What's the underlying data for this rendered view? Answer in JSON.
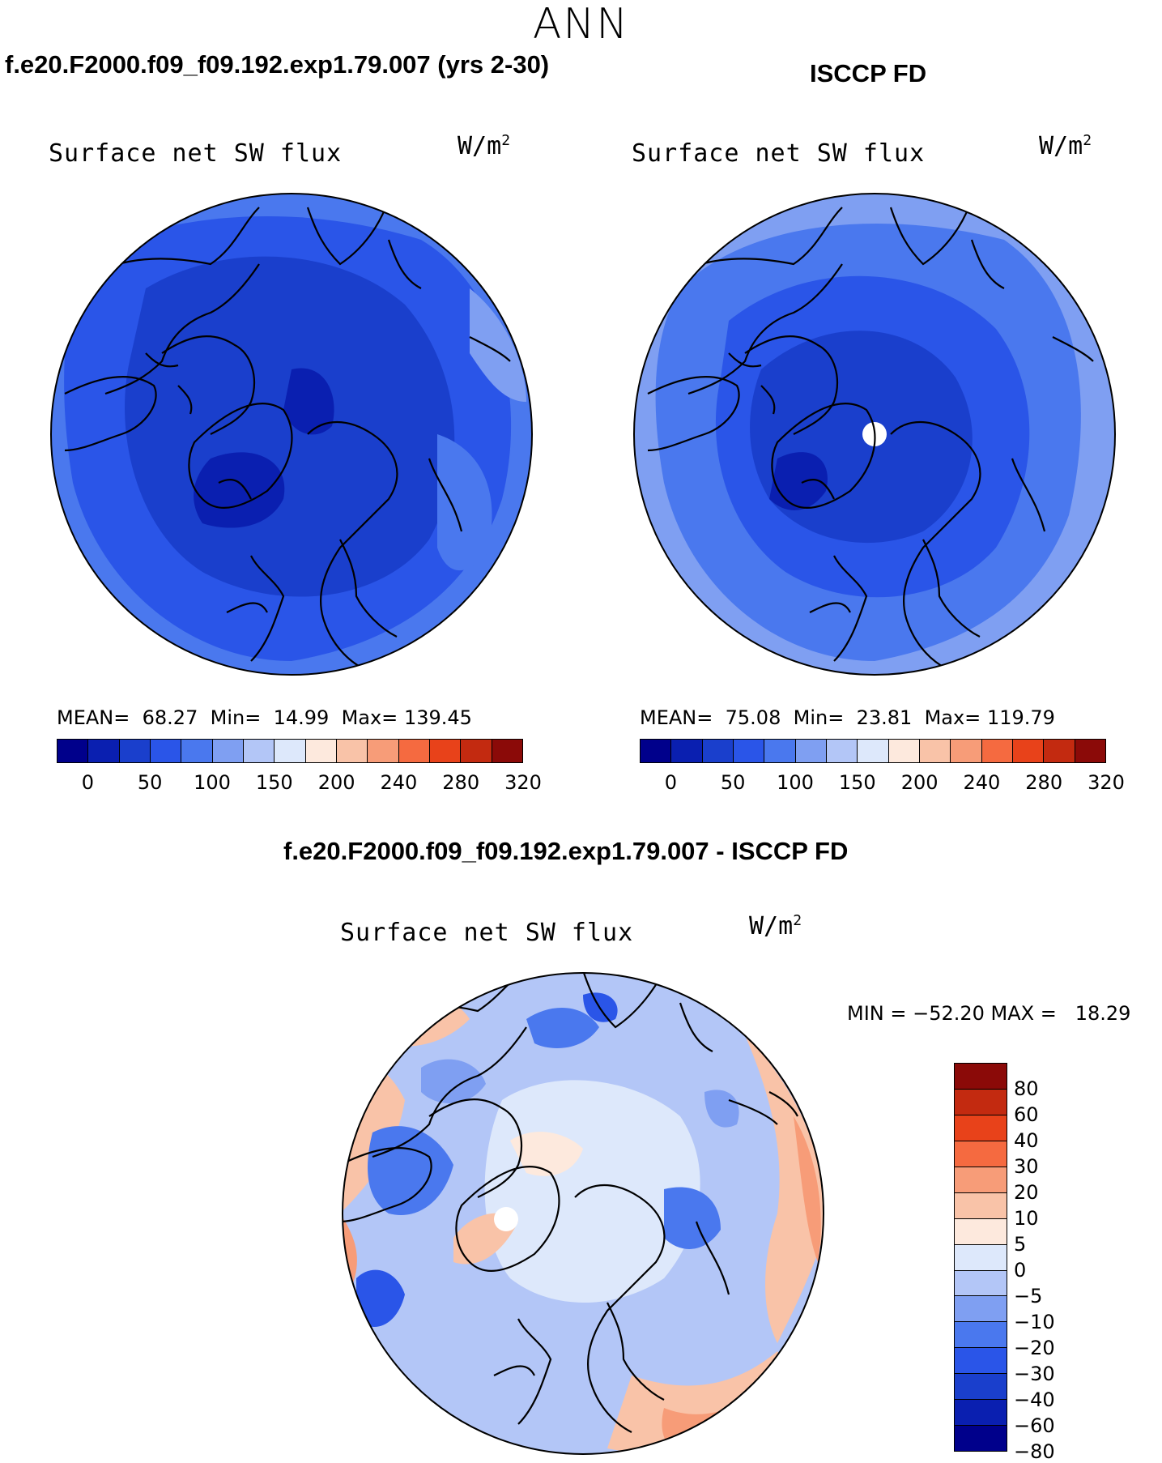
{
  "season": "ANN",
  "panels": {
    "model": {
      "case_title": "f.e20.F2000.f09_f09.192.exp1.79.007 (yrs 2-30)",
      "label": "Surface net SW flux",
      "unit_base": "W/m",
      "unit_exp": "2",
      "stats": {
        "mean_label": "MEAN=",
        "mean": "68.27",
        "min_label": "Min=",
        "min": "14.99",
        "max_label": "Max=",
        "max": "139.45"
      }
    },
    "obs": {
      "case_title": "ISCCP FD",
      "label": "Surface net SW flux",
      "unit_base": "W/m",
      "unit_exp": "2",
      "stats": {
        "mean_label": "MEAN=",
        "mean": "75.08",
        "min_label": "Min=",
        "min": "23.81",
        "max_label": "Max=",
        "max": "119.79"
      }
    },
    "diff": {
      "case_title": "f.e20.F2000.f09_f09.192.exp1.79.007 - ISCCP FD",
      "label": "Surface net SW flux",
      "unit_base": "W/m",
      "unit_exp": "2",
      "minmax": "MIN = −52.20 MAX =   18.29"
    }
  },
  "colorbar_main": {
    "colors": [
      "#00008b",
      "#0a1fb0",
      "#1a3fcc",
      "#2a55e8",
      "#4a78ee",
      "#7f9ff2",
      "#b3c6f7",
      "#dde8fb",
      "#fde9dd",
      "#f9c3a8",
      "#f79c78",
      "#f56a40",
      "#e8421a",
      "#c32a10",
      "#8b0a08"
    ],
    "tick_labels": [
      "0",
      "50",
      "100",
      "150",
      "200",
      "240",
      "280",
      "320"
    ]
  },
  "colorbar_diff": {
    "colors": [
      "#8b0a08",
      "#c32a10",
      "#e8421a",
      "#f56a40",
      "#f79c78",
      "#f9c3a8",
      "#fde9dd",
      "#dde8fb",
      "#b3c6f7",
      "#7f9ff2",
      "#4a78ee",
      "#2a55e8",
      "#1a3fcc",
      "#0a1fb0",
      "#00008b"
    ],
    "tick_labels": [
      "80",
      "60",
      "40",
      "30",
      "20",
      "10",
      "5",
      "0",
      "−5",
      "−10",
      "−20",
      "−30",
      "−40",
      "−60",
      "−80"
    ]
  }
}
